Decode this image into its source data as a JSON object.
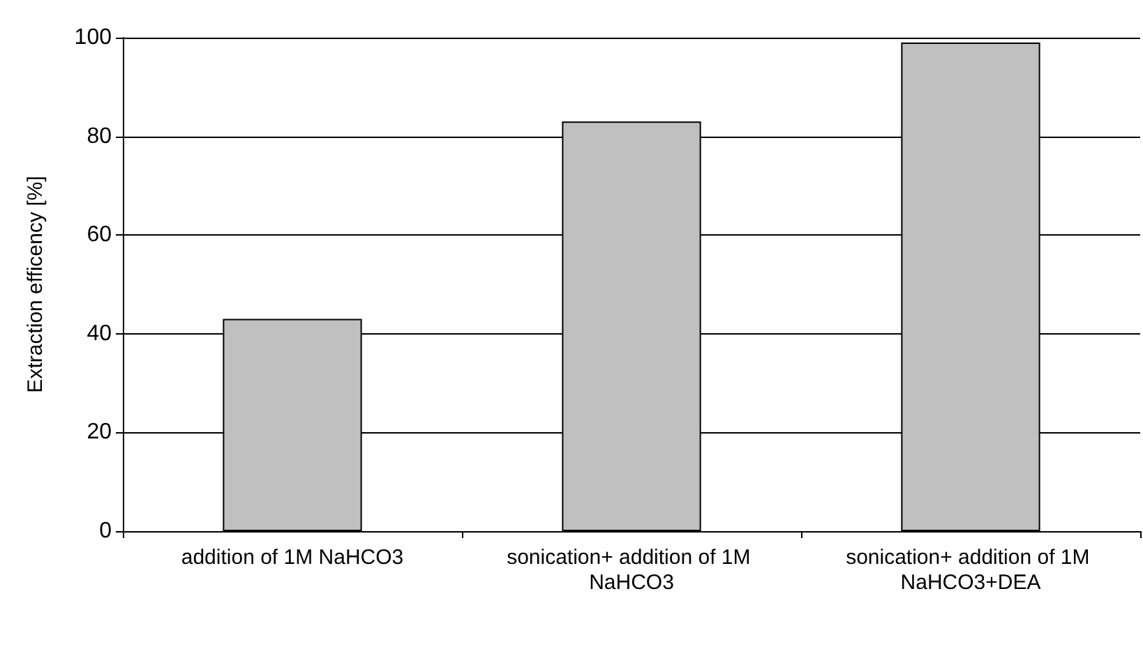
{
  "chart_data": {
    "type": "bar",
    "ylabel": "Extraction efficency [%]",
    "categories": [
      "addition of 1M NaHCO3",
      "sonication+ addition of 1M NaHCO3",
      "sonication+ addition of 1M NaHCO3+DEA"
    ],
    "values": [
      43,
      83,
      99
    ],
    "color": "#c0c0c0",
    "ylim": [
      0,
      100
    ],
    "yticks": [
      0,
      20,
      40,
      60,
      80,
      100
    ],
    "grid": "y"
  }
}
